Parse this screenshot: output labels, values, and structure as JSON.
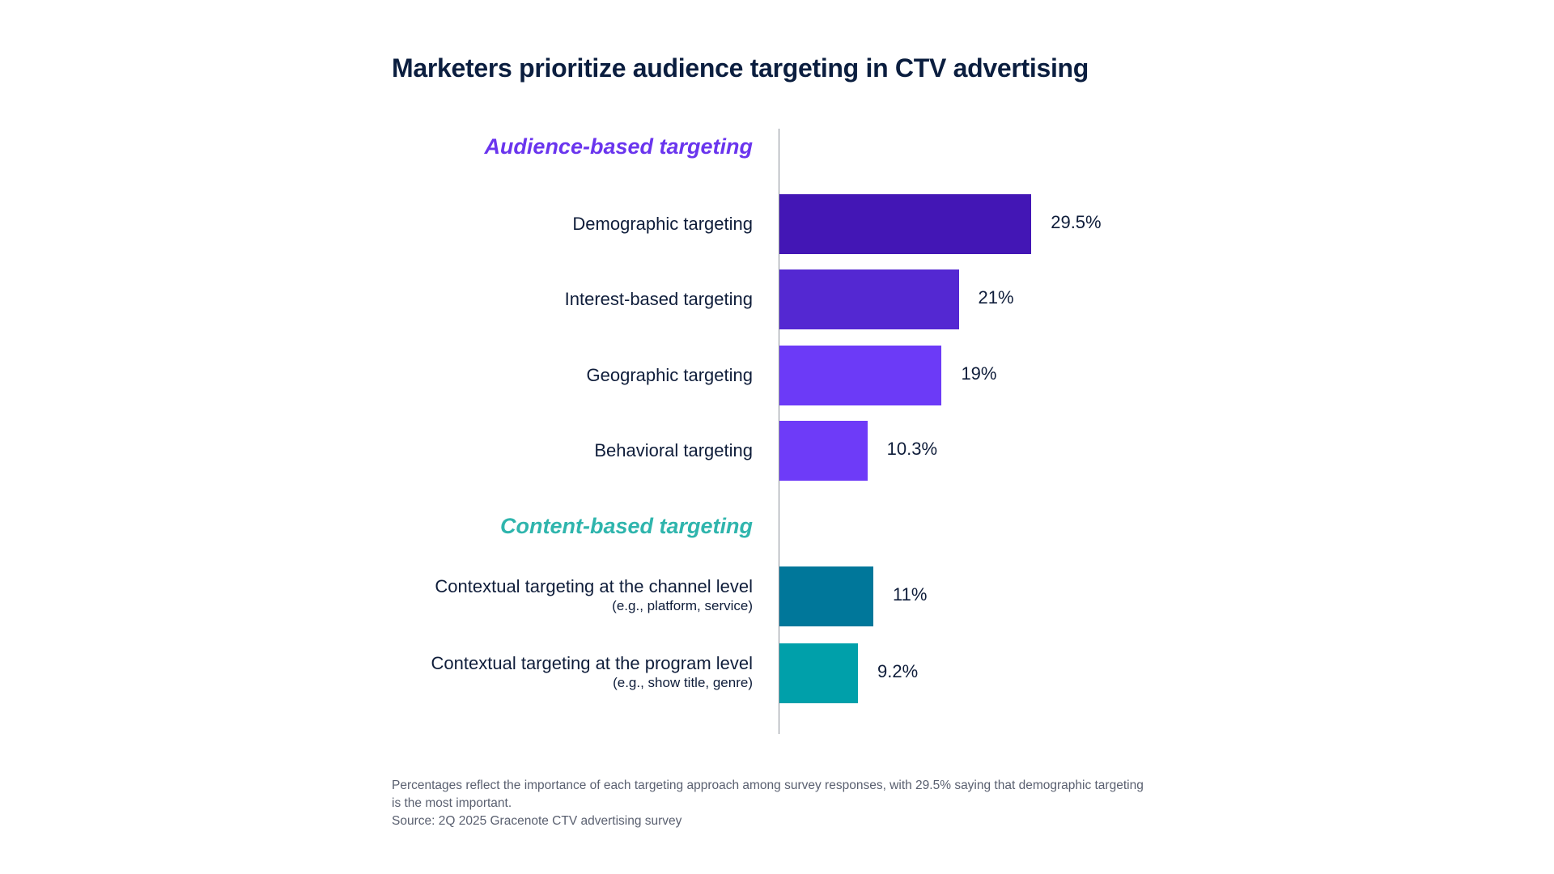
{
  "chart_data": {
    "type": "bar",
    "orientation": "horizontal",
    "title": "Marketers prioritize audience targeting in CTV advertising",
    "groups": [
      {
        "heading": "Audience-based targeting",
        "color": "#6a35ee",
        "items": [
          {
            "label": "Demographic targeting",
            "sublabel": "",
            "value": 29.5,
            "value_label": "29.5%",
            "color": "#4316b5"
          },
          {
            "label": "Interest-based targeting",
            "sublabel": "",
            "value": 21,
            "value_label": "21%",
            "color": "#5428d2"
          },
          {
            "label": "Geographic targeting",
            "sublabel": "",
            "value": 19,
            "value_label": "19%",
            "color": "#6c3af7"
          },
          {
            "label": "Behavioral targeting",
            "sublabel": "",
            "value": 10.3,
            "value_label": "10.3%",
            "color": "#6e3bf8"
          }
        ]
      },
      {
        "heading": "Content-based targeting",
        "color": "#2fb5ad",
        "items": [
          {
            "label": "Contextual targeting at the channel level",
            "sublabel": "(e.g., platform, service)",
            "value": 11,
            "value_label": "11%",
            "color": "#00779a"
          },
          {
            "label": "Contextual targeting at the program level",
            "sublabel": "(e.g., show title, genre)",
            "value": 9.2,
            "value_label": "9.2%",
            "color": "#00a0aa"
          }
        ]
      }
    ],
    "unit": "%",
    "grid": false,
    "legend": "none"
  },
  "footnote": {
    "note": "Percentages reflect the importance of each targeting approach among survey responses, with 29.5% saying that demographic targeting is the most important.",
    "source": "Source: 2Q 2025 Gracenote CTV advertising survey"
  }
}
